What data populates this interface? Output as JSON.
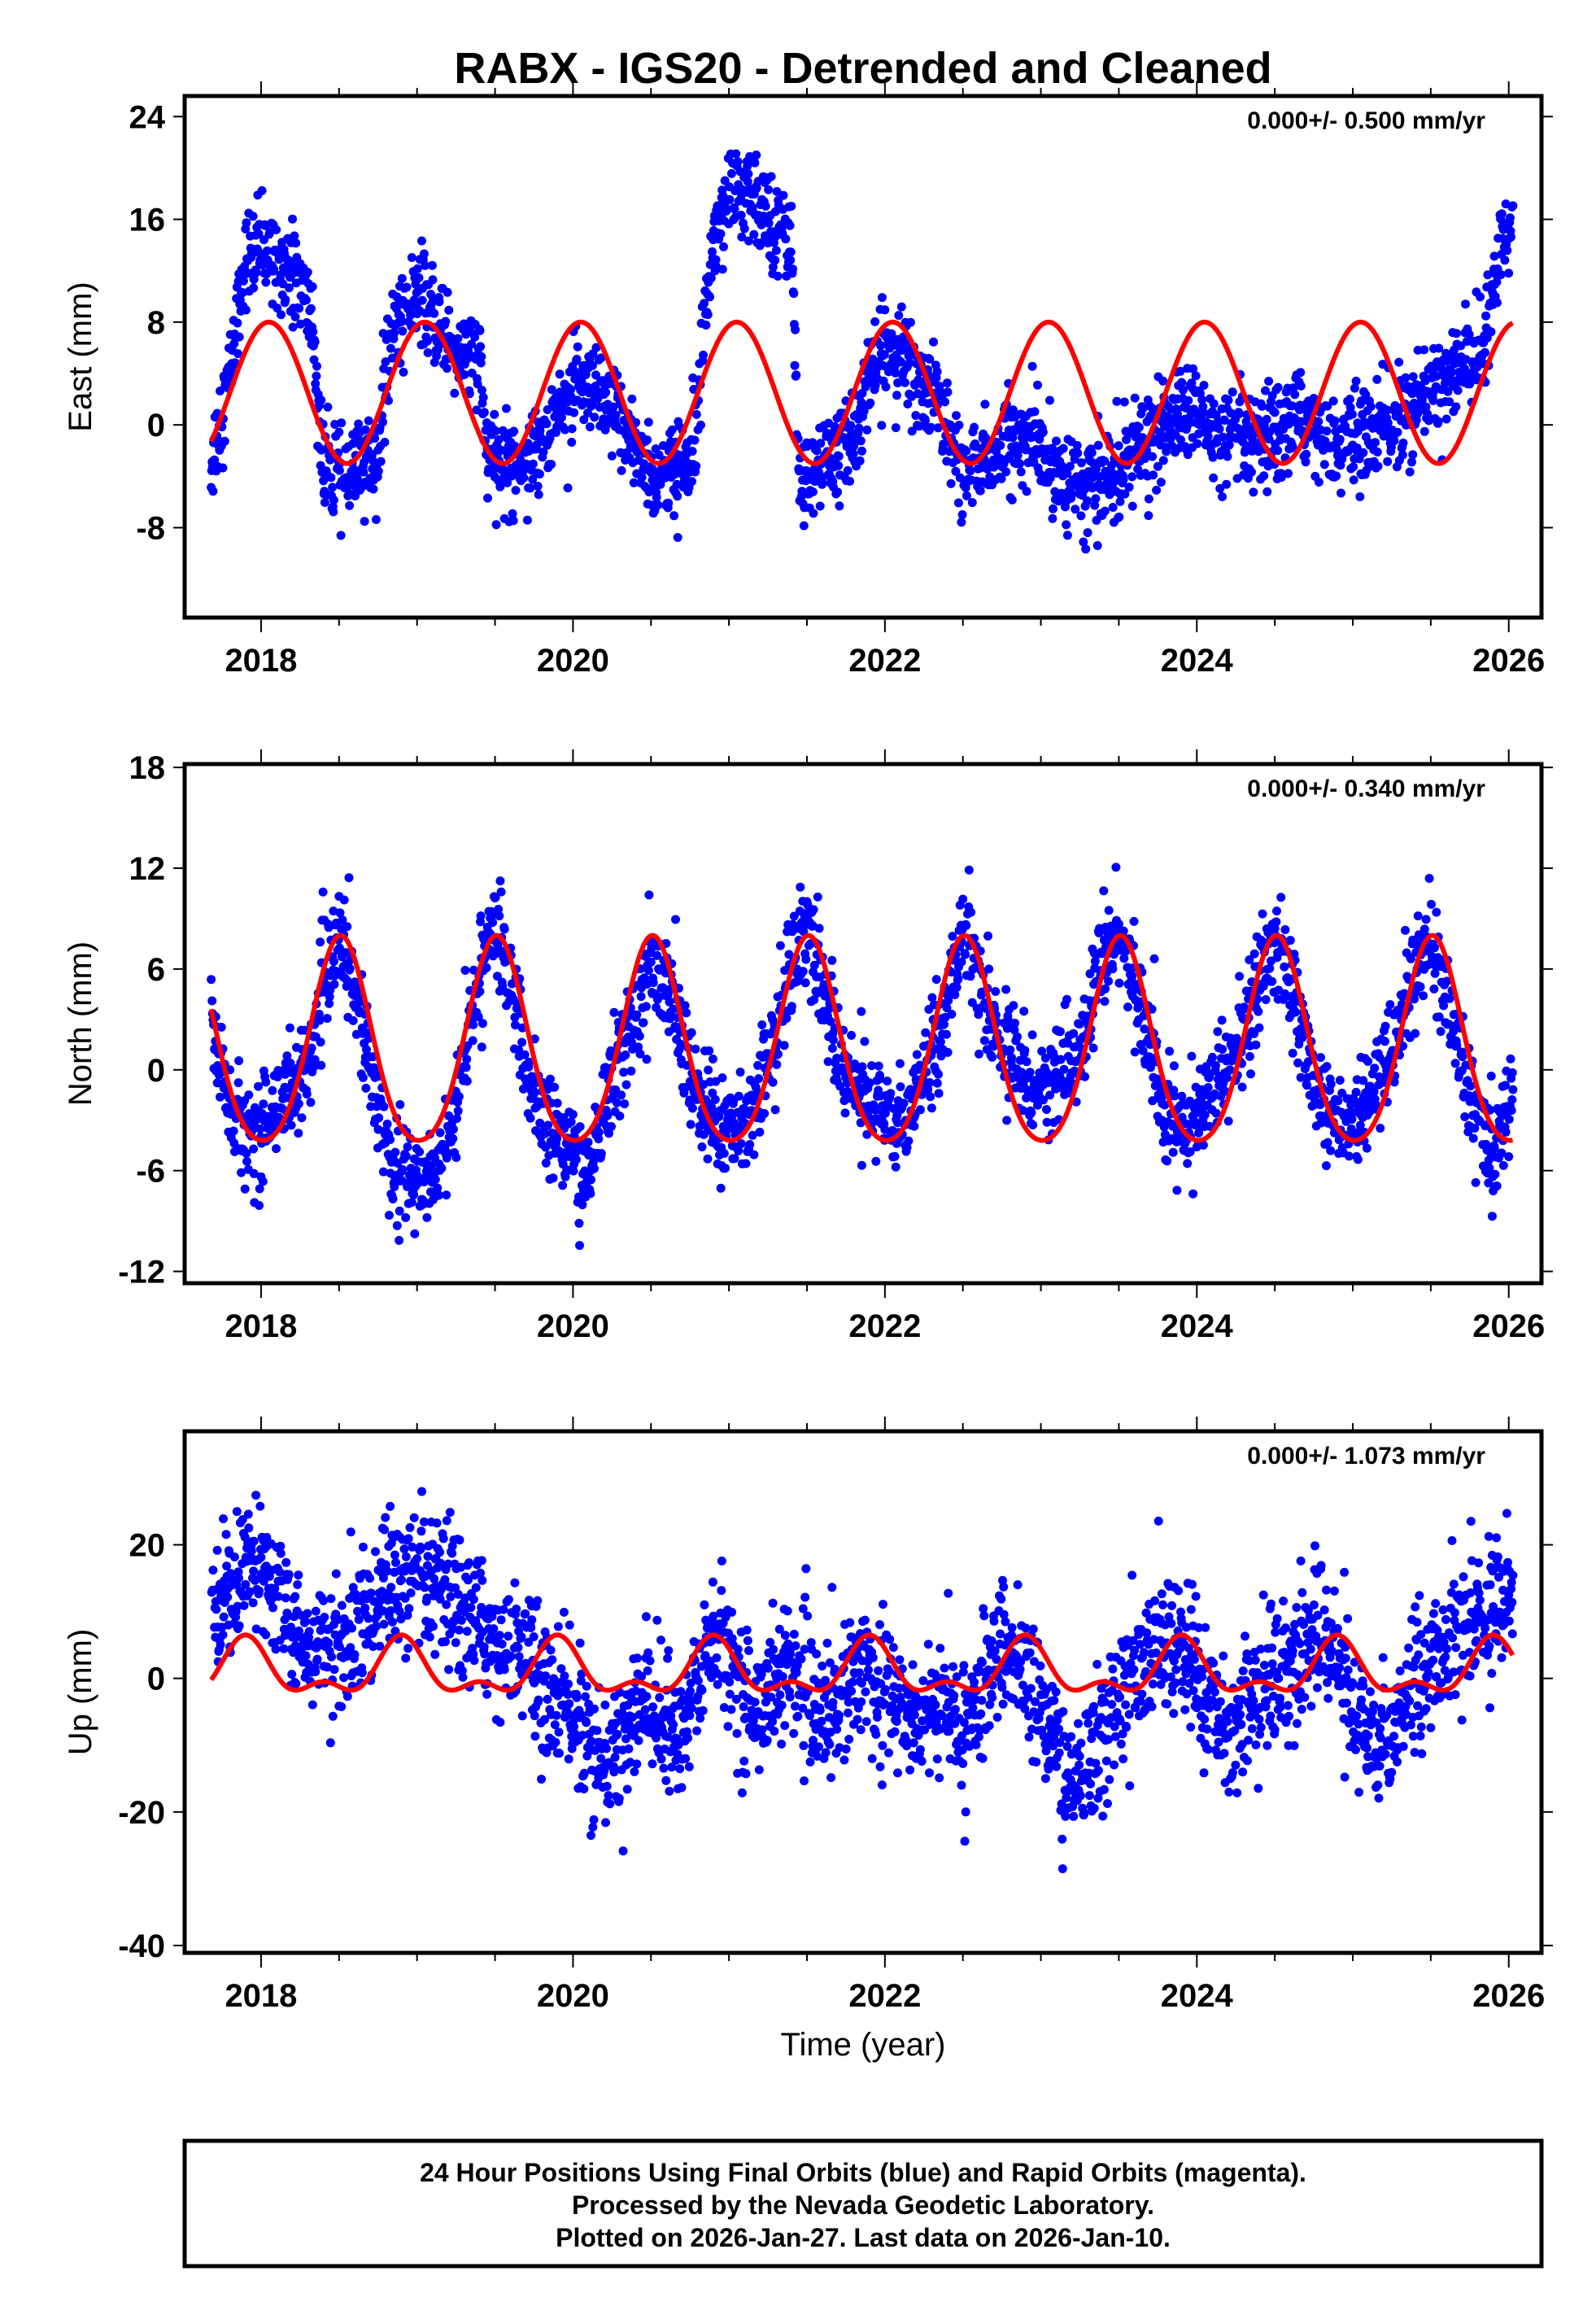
{
  "title": "RABX - IGS20 - Detrended and Cleaned",
  "xlabel": "Time (year)",
  "footer": [
    "24 Hour Positions Using Final Orbits (blue) and Rapid Orbits (magenta).",
    "Processed by the Nevada Geodetic Laboratory.",
    "Plotted on 2026-Jan-27. Last data on 2026-Jan-10."
  ],
  "colors": {
    "points": "#0000ff",
    "fit": "#ff0000",
    "frame": "#000000"
  },
  "chart_data": [
    {
      "type": "scatter",
      "ylabel": "East (mm)",
      "rate": "0.000+/- 0.500 mm/yr",
      "xlim": [
        2017.51,
        2026.21
      ],
      "ylim": [
        -15,
        25.6
      ],
      "xticks": [
        "2018",
        "2020",
        "2022",
        "2024",
        "2026"
      ],
      "yticks": [
        "24",
        "16",
        "8",
        "0",
        "-8"
      ],
      "spread": 1.8,
      "fit": {
        "offset": 2.5,
        "annual_amp": 5.5,
        "annual_peak": 0.05,
        "semi_amp": 0,
        "semi_peak": 0
      },
      "series_mean": [
        [
          2017.68,
          -3
        ],
        [
          2017.8,
          4
        ],
        [
          2017.9,
          13
        ],
        [
          2018.0,
          13.5
        ],
        [
          2018.125,
          13
        ],
        [
          2018.25,
          11
        ],
        [
          2018.33,
          8
        ],
        [
          2018.4,
          -4
        ],
        [
          2018.6,
          -4
        ],
        [
          2018.75,
          -2
        ],
        [
          2018.85,
          8
        ],
        [
          2019.0,
          10
        ],
        [
          2019.125,
          8
        ],
        [
          2019.25,
          6
        ],
        [
          2019.4,
          5
        ],
        [
          2019.45,
          -3
        ],
        [
          2019.6,
          -3
        ],
        [
          2019.75,
          -2
        ],
        [
          2019.9,
          1
        ],
        [
          2020.0,
          3
        ],
        [
          2020.125,
          2
        ],
        [
          2020.25,
          1
        ],
        [
          2020.375,
          -1
        ],
        [
          2020.5,
          -4
        ],
        [
          2020.6,
          -4
        ],
        [
          2020.75,
          -3
        ],
        [
          2020.85,
          10
        ],
        [
          2020.95,
          17
        ],
        [
          2021.1,
          18
        ],
        [
          2021.25,
          16
        ],
        [
          2021.4,
          15
        ],
        [
          2021.45,
          -5
        ],
        [
          2021.6,
          -3
        ],
        [
          2021.75,
          -2
        ],
        [
          2021.9,
          3
        ],
        [
          2022.0,
          6
        ],
        [
          2022.125,
          5
        ],
        [
          2022.25,
          3
        ],
        [
          2022.375,
          1
        ],
        [
          2022.5,
          -4
        ],
        [
          2022.6,
          -3
        ],
        [
          2022.75,
          -2
        ],
        [
          2022.9,
          -1
        ],
        [
          2023.0,
          -2
        ],
        [
          2023.15,
          -4
        ],
        [
          2023.3,
          -5
        ],
        [
          2023.45,
          -4
        ],
        [
          2023.6,
          -2
        ],
        [
          2023.75,
          -1
        ],
        [
          2023.9,
          1
        ],
        [
          2024.0,
          1
        ],
        [
          2024.1,
          -1
        ],
        [
          2024.25,
          -1
        ],
        [
          2024.375,
          -2
        ],
        [
          2024.5,
          -1
        ],
        [
          2024.625,
          0.5
        ],
        [
          2024.75,
          0.5
        ],
        [
          2024.9,
          -2
        ],
        [
          2025.0,
          -1
        ],
        [
          2025.125,
          -0.5
        ],
        [
          2025.25,
          0
        ],
        [
          2025.375,
          1
        ],
        [
          2025.5,
          2.5
        ],
        [
          2025.625,
          4
        ],
        [
          2025.75,
          5
        ],
        [
          2025.85,
          6
        ],
        [
          2025.95,
          14
        ],
        [
          2026.03,
          15
        ]
      ]
    },
    {
      "type": "scatter",
      "ylabel": "North (mm)",
      "rate": "0.000+/- 0.340 mm/yr",
      "xlim": [
        2017.51,
        2026.21
      ],
      "ylim": [
        -12.7,
        18.2
      ],
      "xticks": [
        "2018",
        "2020",
        "2022",
        "2024",
        "2026"
      ],
      "yticks": [
        "18",
        "12",
        "6",
        "0",
        "-6",
        "-12"
      ],
      "spread": 1.5,
      "fit": {
        "offset": 1.1,
        "annual_amp": 6.1,
        "annual_peak": 0.51,
        "semi_amp": 0.8,
        "semi_peak": 0.51
      },
      "series_mean": [
        [
          2017.68,
          3
        ],
        [
          2017.8,
          -2
        ],
        [
          2017.9,
          -4
        ],
        [
          2018.0,
          -3.5
        ],
        [
          2018.1,
          -2
        ],
        [
          2018.2,
          -1
        ],
        [
          2018.3,
          0
        ],
        [
          2018.4,
          5
        ],
        [
          2018.5,
          8
        ],
        [
          2018.6,
          5
        ],
        [
          2018.7,
          0
        ],
        [
          2018.8,
          -4
        ],
        [
          2018.9,
          -6
        ],
        [
          2019.0,
          -7
        ],
        [
          2019.1,
          -6
        ],
        [
          2019.2,
          -4
        ],
        [
          2019.3,
          0
        ],
        [
          2019.4,
          6
        ],
        [
          2019.5,
          9
        ],
        [
          2019.6,
          5
        ],
        [
          2019.7,
          0
        ],
        [
          2019.8,
          -3
        ],
        [
          2019.9,
          -4
        ],
        [
          2020.0,
          -5
        ],
        [
          2020.1,
          -7
        ],
        [
          2020.2,
          -2
        ],
        [
          2020.3,
          1
        ],
        [
          2020.4,
          3
        ],
        [
          2020.5,
          6
        ],
        [
          2020.6,
          5
        ],
        [
          2020.7,
          2
        ],
        [
          2020.8,
          -2
        ],
        [
          2020.9,
          -3
        ],
        [
          2021.0,
          -4
        ],
        [
          2021.1,
          -3
        ],
        [
          2021.2,
          -1
        ],
        [
          2021.3,
          2
        ],
        [
          2021.4,
          6
        ],
        [
          2021.5,
          9
        ],
        [
          2021.6,
          5
        ],
        [
          2021.7,
          1
        ],
        [
          2021.8,
          -1
        ],
        [
          2021.9,
          -2
        ],
        [
          2022.0,
          -3
        ],
        [
          2022.1,
          -3
        ],
        [
          2022.2,
          -1
        ],
        [
          2022.3,
          1
        ],
        [
          2022.4,
          4
        ],
        [
          2022.5,
          9
        ],
        [
          2022.6,
          5
        ],
        [
          2022.7,
          2
        ],
        [
          2022.8,
          1
        ],
        [
          2022.9,
          0
        ],
        [
          2023.0,
          -1
        ],
        [
          2023.1,
          0
        ],
        [
          2023.2,
          0
        ],
        [
          2023.3,
          3
        ],
        [
          2023.4,
          7
        ],
        [
          2023.5,
          8
        ],
        [
          2023.6,
          5
        ],
        [
          2023.7,
          1
        ],
        [
          2023.8,
          -2
        ],
        [
          2023.9,
          -4
        ],
        [
          2024.0,
          -3
        ],
        [
          2024.1,
          -1
        ],
        [
          2024.2,
          0
        ],
        [
          2024.3,
          2
        ],
        [
          2024.4,
          5
        ],
        [
          2024.5,
          8
        ],
        [
          2024.6,
          5
        ],
        [
          2024.7,
          1
        ],
        [
          2024.8,
          -2
        ],
        [
          2024.9,
          -3
        ],
        [
          2025.0,
          -4
        ],
        [
          2025.1,
          -2
        ],
        [
          2025.2,
          0
        ],
        [
          2025.3,
          3
        ],
        [
          2025.4,
          6
        ],
        [
          2025.5,
          8
        ],
        [
          2025.6,
          4
        ],
        [
          2025.7,
          0
        ],
        [
          2025.8,
          -3
        ],
        [
          2025.9,
          -5
        ],
        [
          2026.03,
          -1
        ]
      ]
    },
    {
      "type": "scatter",
      "ylabel": "Up (mm)",
      "rate": "0.000+/- 1.073 mm/yr",
      "xlim": [
        2017.51,
        2026.21
      ],
      "ylim": [
        -41.1,
        37
      ],
      "xticks": [
        "2018",
        "2020",
        "2022",
        "2024",
        "2026"
      ],
      "yticks": [
        "20",
        "0",
        "-20",
        "-40"
      ],
      "spread": 5,
      "fit": {
        "offset": 1,
        "annual_amp": 3.5,
        "annual_peak": 0.9,
        "semi_amp": 2,
        "semi_peak": 0.9
      },
      "series_mean": [
        [
          2017.68,
          12
        ],
        [
          2017.8,
          13
        ],
        [
          2017.9,
          18
        ],
        [
          2018.0,
          16
        ],
        [
          2018.1,
          12
        ],
        [
          2018.2,
          8
        ],
        [
          2018.3,
          6
        ],
        [
          2018.4,
          4
        ],
        [
          2018.5,
          6
        ],
        [
          2018.6,
          7
        ],
        [
          2018.7,
          10
        ],
        [
          2018.8,
          14
        ],
        [
          2018.9,
          15
        ],
        [
          2019.0,
          14
        ],
        [
          2019.1,
          13
        ],
        [
          2019.2,
          12
        ],
        [
          2019.3,
          10
        ],
        [
          2019.4,
          8
        ],
        [
          2019.5,
          6
        ],
        [
          2019.6,
          5
        ],
        [
          2019.7,
          4
        ],
        [
          2019.8,
          -2
        ],
        [
          2019.9,
          -3
        ],
        [
          2020.0,
          -5
        ],
        [
          2020.1,
          -10
        ],
        [
          2020.2,
          -15
        ],
        [
          2020.3,
          -10
        ],
        [
          2020.4,
          -5
        ],
        [
          2020.5,
          -3
        ],
        [
          2020.6,
          -8
        ],
        [
          2020.7,
          -10
        ],
        [
          2020.8,
          0
        ],
        [
          2020.9,
          8
        ],
        [
          2021.0,
          3
        ],
        [
          2021.1,
          -3
        ],
        [
          2021.2,
          -5
        ],
        [
          2021.3,
          0
        ],
        [
          2021.4,
          2
        ],
        [
          2021.5,
          -3
        ],
        [
          2021.6,
          -6
        ],
        [
          2021.7,
          -3
        ],
        [
          2021.8,
          0
        ],
        [
          2021.9,
          3
        ],
        [
          2022.0,
          -2
        ],
        [
          2022.1,
          -5
        ],
        [
          2022.2,
          -6
        ],
        [
          2022.3,
          -3
        ],
        [
          2022.4,
          -5
        ],
        [
          2022.5,
          -8
        ],
        [
          2022.6,
          -3
        ],
        [
          2022.7,
          2
        ],
        [
          2022.8,
          5
        ],
        [
          2022.9,
          0
        ],
        [
          2023.0,
          -5
        ],
        [
          2023.1,
          -10
        ],
        [
          2023.2,
          -18
        ],
        [
          2023.3,
          -12
        ],
        [
          2023.4,
          -8
        ],
        [
          2023.5,
          -3
        ],
        [
          2023.6,
          0
        ],
        [
          2023.7,
          3
        ],
        [
          2023.8,
          6
        ],
        [
          2023.9,
          4
        ],
        [
          2024.0,
          0
        ],
        [
          2024.1,
          -5
        ],
        [
          2024.2,
          -8
        ],
        [
          2024.3,
          -5
        ],
        [
          2024.4,
          -2
        ],
        [
          2024.5,
          0
        ],
        [
          2024.6,
          2
        ],
        [
          2024.7,
          5
        ],
        [
          2024.8,
          8
        ],
        [
          2024.9,
          3
        ],
        [
          2025.0,
          -5
        ],
        [
          2025.1,
          -10
        ],
        [
          2025.2,
          -8
        ],
        [
          2025.3,
          -5
        ],
        [
          2025.4,
          0
        ],
        [
          2025.5,
          3
        ],
        [
          2025.6,
          5
        ],
        [
          2025.7,
          7
        ],
        [
          2025.8,
          8
        ],
        [
          2025.9,
          10
        ],
        [
          2026.03,
          15
        ]
      ]
    }
  ]
}
